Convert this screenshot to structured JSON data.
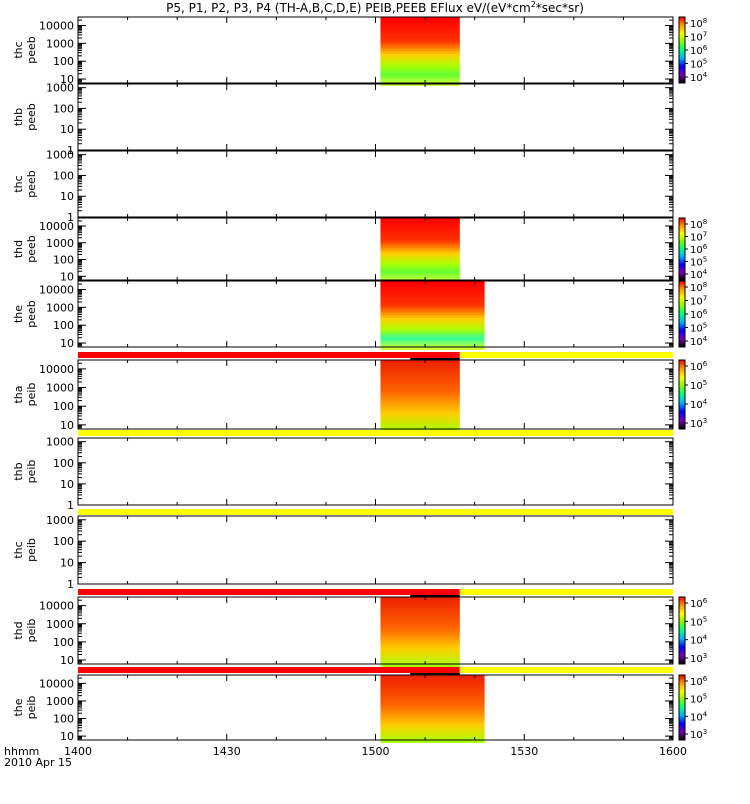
{
  "chart_data": {
    "type": "heatmap",
    "title": "P5, P1, P2, P3, P4 (TH-A,B,C,D,E) PEIB,PEEB EFlux eV/(eV*cm^2*sec*sr)",
    "title_parts": {
      "main": "P5, P1, P2, P3, P4 (TH-A,B,C,D,E) PEIB,PEEB EFlux eV/(eV*cm",
      "sup": "2",
      "tail": "*sec*sr)"
    },
    "x_axis": {
      "xlim": [
        1400,
        1600
      ],
      "ticks": [
        {
          "value": 1400,
          "label": "1400"
        },
        {
          "value": 1430,
          "label": "1430"
        },
        {
          "value": 1500,
          "label": "1500"
        },
        {
          "value": 1530,
          "label": "1530"
        },
        {
          "value": 1600,
          "label": "1600"
        }
      ],
      "minor_ticks_minutes": [
        1410,
        1420,
        1440,
        1450,
        1510,
        1520,
        1540,
        1550
      ],
      "label": "hhmm",
      "date": "2010 Apr 15"
    },
    "colorbar_gradient": [
      "#000000",
      "#7a00b0",
      "#0000ff",
      "#00b0ff",
      "#00ff80",
      "#80ff00",
      "#ffff00",
      "#ff9900",
      "#ff0000"
    ],
    "panels": [
      {
        "probe": "thc",
        "instrument": "peeb",
        "ylabels": [
          {
            "v": 10,
            "t": "10"
          },
          {
            "v": 100,
            "t": "100"
          },
          {
            "v": 1000,
            "t": "1000"
          },
          {
            "v": 10000,
            "t": "10000"
          }
        ],
        "ylim": [
          6,
          30000
        ],
        "data": {
          "t_start": 1501,
          "t_end": 1517,
          "mode": "electron",
          "green_at": 80,
          "green_peak": "#66ff33"
        },
        "colorbar": {
          "ticks": [
            {
              "e": "4"
            },
            {
              "e": "5"
            },
            {
              "e": "6"
            },
            {
              "e": "7"
            },
            {
              "e": "8"
            }
          ]
        }
      },
      {
        "probe": "thb",
        "instrument": "peeb",
        "ylabels": [
          {
            "v": 1,
            "t": "1"
          },
          {
            "v": 10,
            "t": "10"
          },
          {
            "v": 100,
            "t": "100"
          },
          {
            "v": 1000,
            "t": "1000"
          }
        ],
        "ylim": [
          1,
          1500
        ],
        "data": null,
        "colorbar": null
      },
      {
        "probe": "thc",
        "instrument": "peeb",
        "ylabels": [
          {
            "v": 1,
            "t": "1"
          },
          {
            "v": 10,
            "t": "10"
          },
          {
            "v": 100,
            "t": "100"
          },
          {
            "v": 1000,
            "t": "1000"
          }
        ],
        "ylim": [
          1,
          1500
        ],
        "data": null,
        "colorbar": null
      },
      {
        "probe": "thd",
        "instrument": "peeb",
        "ylabels": [
          {
            "v": 10,
            "t": "10"
          },
          {
            "v": 100,
            "t": "100"
          },
          {
            "v": 1000,
            "t": "1000"
          },
          {
            "v": 10000,
            "t": "10000"
          }
        ],
        "ylim": [
          6,
          30000
        ],
        "data": {
          "t_start": 1501,
          "t_end": 1517,
          "mode": "electron",
          "green_at": 80,
          "green_peak": "#66ff33"
        },
        "colorbar": {
          "ticks": [
            {
              "e": "4"
            },
            {
              "e": "5"
            },
            {
              "e": "6"
            },
            {
              "e": "7"
            },
            {
              "e": "8"
            }
          ]
        }
      },
      {
        "probe": "the",
        "instrument": "peeb",
        "ylabels": [
          {
            "v": 10,
            "t": "10"
          },
          {
            "v": 100,
            "t": "100"
          },
          {
            "v": 1000,
            "t": "1000"
          },
          {
            "v": 10000,
            "t": "10000"
          }
        ],
        "ylim": [
          6,
          30000
        ],
        "data": {
          "t_start": 1501,
          "t_end": 1522,
          "mode": "electron",
          "green_at": 60,
          "green_peak": "#33ff99"
        },
        "colorbar": {
          "ticks": [
            {
              "e": "4"
            },
            {
              "e": "5"
            },
            {
              "e": "6"
            },
            {
              "e": "7"
            },
            {
              "e": "8"
            }
          ]
        }
      },
      {
        "probe": "tha",
        "instrument": "peib",
        "ylabels": [
          {
            "v": 10,
            "t": "10"
          },
          {
            "v": 100,
            "t": "100"
          },
          {
            "v": 1000,
            "t": "1000"
          },
          {
            "v": 10000,
            "t": "10000"
          }
        ],
        "ylim": [
          6,
          30000
        ],
        "data": {
          "t_start": 1501,
          "t_end": 1517,
          "mode": "ion"
        },
        "colorbar": {
          "ticks": [
            {
              "e": "3"
            },
            {
              "e": "4"
            },
            {
              "e": "5"
            },
            {
              "e": "6"
            }
          ]
        },
        "status_bar": {
          "red_until": 1517,
          "black_from": 1507,
          "black_to": 1517
        }
      },
      {
        "probe": "thb",
        "instrument": "peib",
        "ylabels": [
          {
            "v": 1,
            "t": "1"
          },
          {
            "v": 10,
            "t": "10"
          },
          {
            "v": 100,
            "t": "100"
          },
          {
            "v": 1000,
            "t": "1000"
          }
        ],
        "ylim": [
          1,
          1500
        ],
        "data": null,
        "colorbar": null,
        "status_bar": {
          "red_until": null
        }
      },
      {
        "probe": "thc",
        "instrument": "peib",
        "ylabels": [
          {
            "v": 1,
            "t": "1"
          },
          {
            "v": 10,
            "t": "10"
          },
          {
            "v": 100,
            "t": "100"
          },
          {
            "v": 1000,
            "t": "1000"
          }
        ],
        "ylim": [
          1,
          1500
        ],
        "data": null,
        "colorbar": null,
        "status_bar": {
          "red_until": null
        }
      },
      {
        "probe": "thd",
        "instrument": "peib",
        "ylabels": [
          {
            "v": 10,
            "t": "10"
          },
          {
            "v": 100,
            "t": "100"
          },
          {
            "v": 1000,
            "t": "1000"
          },
          {
            "v": 10000,
            "t": "10000"
          }
        ],
        "ylim": [
          6,
          30000
        ],
        "data": {
          "t_start": 1501,
          "t_end": 1517,
          "mode": "ion"
        },
        "colorbar": {
          "ticks": [
            {
              "e": "3"
            },
            {
              "e": "4"
            },
            {
              "e": "5"
            },
            {
              "e": "6"
            }
          ]
        },
        "status_bar": {
          "red_until": 1517,
          "black_from": 1507,
          "black_to": 1517
        }
      },
      {
        "probe": "the",
        "instrument": "peib",
        "ylabels": [
          {
            "v": 10,
            "t": "10"
          },
          {
            "v": 100,
            "t": "100"
          },
          {
            "v": 1000,
            "t": "1000"
          },
          {
            "v": 10000,
            "t": "10000"
          }
        ],
        "ylim": [
          6,
          30000
        ],
        "data": {
          "t_start": 1501,
          "t_end": 1522,
          "mode": "ion"
        },
        "colorbar": {
          "ticks": [
            {
              "e": "3"
            },
            {
              "e": "4"
            },
            {
              "e": "5"
            },
            {
              "e": "6"
            }
          ]
        },
        "status_bar": {
          "red_until": 1517,
          "black_from": 1507,
          "black_to": 1517
        }
      }
    ]
  }
}
